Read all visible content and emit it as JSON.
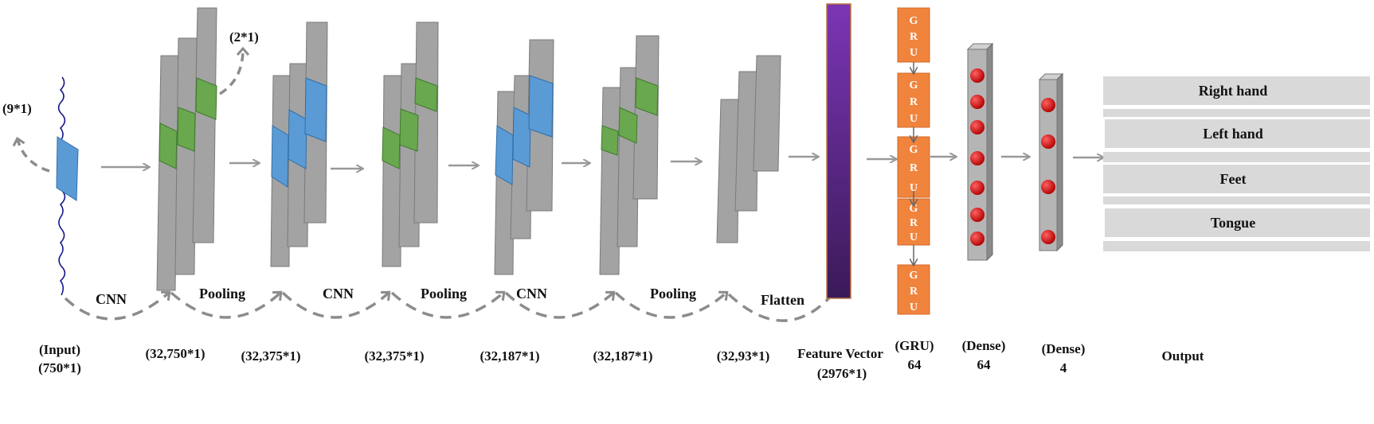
{
  "annotations": {
    "kernel": "(9*1)",
    "pool": "(2*1)"
  },
  "operations": [
    "CNN",
    "Pooling",
    "CNN",
    "Pooling",
    "CNN",
    "Pooling",
    "Flatten"
  ],
  "shapes": {
    "input": [
      "(Input)",
      "(750*1)"
    ],
    "s1": "(32,750*1)",
    "s2": "(32,375*1)",
    "s3": "(32,375*1)",
    "s4": "(32,187*1)",
    "s5": "(32,187*1)",
    "s6": "(32,93*1)",
    "feature": [
      "Feature Vector",
      "(2976*1)"
    ],
    "gru": [
      "(GRU)",
      "64"
    ],
    "dense1": [
      "(Dense)",
      "64"
    ],
    "dense2": [
      "(Dense)",
      "4"
    ],
    "output": "Output"
  },
  "gru_letters": [
    "G",
    "R",
    "U"
  ],
  "outputs": [
    "Right hand",
    "Left hand",
    "Feet",
    "Tongue"
  ],
  "colors": {
    "feature_top": "#7b35b5",
    "feature_bottom": "#3b1a58",
    "gru": "#f0843c",
    "node": "#e01010"
  }
}
